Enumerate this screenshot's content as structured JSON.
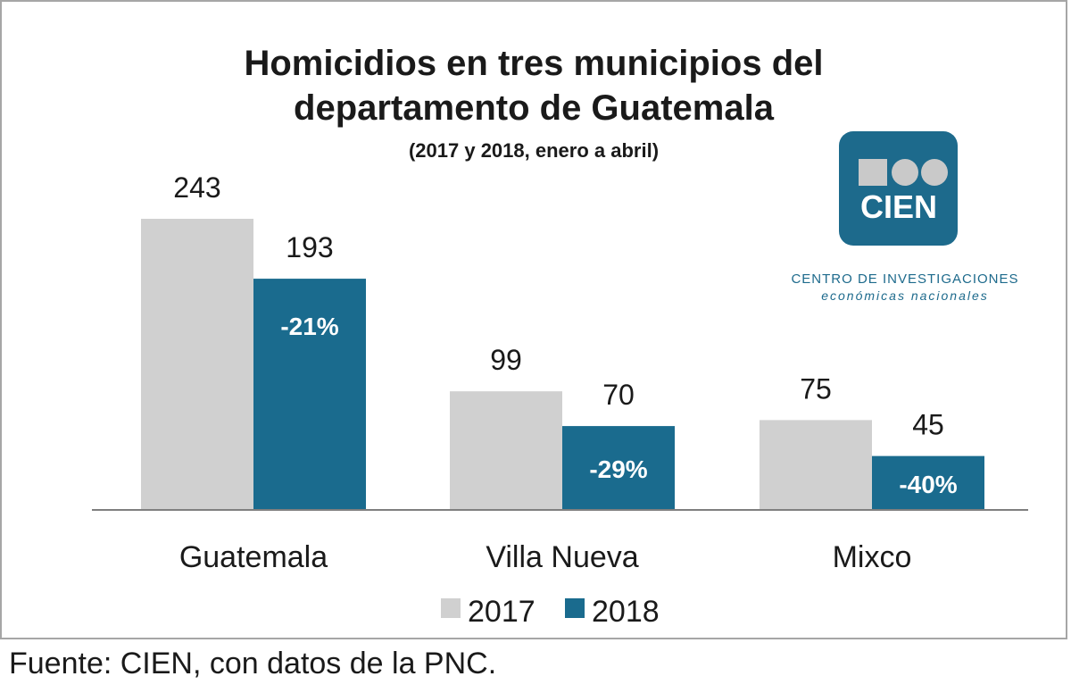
{
  "chart_data": {
    "type": "bar",
    "title_lines": [
      "Homicidios en tres municipios del",
      "departamento de Guatemala"
    ],
    "subtitle": "(2017 y 2018, enero a abril)",
    "categories": [
      "Guatemala",
      "Villa Nueva",
      "Mixco"
    ],
    "series": [
      {
        "name": "2017",
        "values": [
          243,
          99,
          75
        ],
        "color": "#d0d0d0"
      },
      {
        "name": "2018",
        "values": [
          193,
          70,
          45
        ],
        "color": "#1a6b8e"
      }
    ],
    "changes": [
      "-21%",
      "-29%",
      "-40%"
    ],
    "ylim": [
      0,
      243
    ],
    "legend_position": "bottom",
    "grid": false
  },
  "logo": {
    "text": "CIEN",
    "org_line1": "CENTRO DE INVESTIGACIONES",
    "org_line2": "económicas nacionales",
    "color": "#1d6a8c"
  },
  "source": "Fuente: CIEN, con datos de la PNC."
}
